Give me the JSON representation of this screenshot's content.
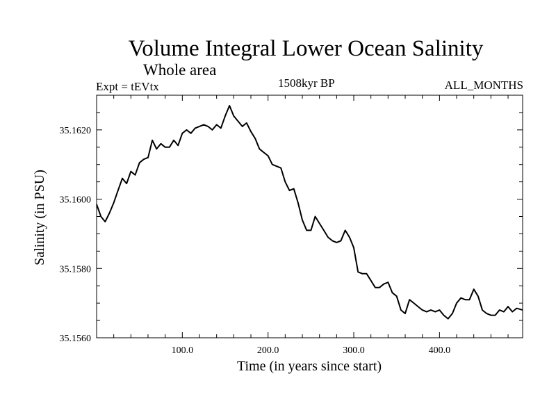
{
  "header": {
    "title": "Volume Integral Lower Ocean Salinity",
    "subtitle": "Whole area",
    "expt": "Expt = tEVtx",
    "period": "1508kyr BP",
    "months": "ALL_MONTHS"
  },
  "chart_data": {
    "type": "line",
    "title": "Volume Integral Lower Ocean Salinity",
    "xlabel": "Time (in years since start)",
    "ylabel": "Salinity (in PSU)",
    "xlim": [
      0,
      497
    ],
    "ylim": [
      35.156,
      35.163
    ],
    "xticks": [
      100,
      200,
      300,
      400
    ],
    "xtick_labels": [
      "100.0",
      "200.0",
      "300.0",
      "400.0"
    ],
    "yticks": [
      35.156,
      35.158,
      35.16,
      35.162
    ],
    "ytick_labels": [
      "35.1560",
      "35.1580",
      "35.1600",
      "35.1620"
    ],
    "series": [
      {
        "name": "Salinity",
        "x": [
          0,
          5,
          10,
          15,
          20,
          25,
          30,
          35,
          40,
          45,
          50,
          55,
          60,
          65,
          70,
          75,
          80,
          85,
          90,
          95,
          100,
          105,
          110,
          115,
          120,
          125,
          130,
          135,
          140,
          145,
          150,
          155,
          160,
          165,
          170,
          175,
          180,
          185,
          190,
          195,
          200,
          205,
          210,
          215,
          220,
          225,
          230,
          235,
          240,
          245,
          250,
          255,
          260,
          265,
          270,
          275,
          280,
          285,
          290,
          295,
          300,
          305,
          310,
          315,
          320,
          325,
          330,
          335,
          340,
          345,
          350,
          355,
          360,
          365,
          370,
          375,
          380,
          385,
          390,
          395,
          400,
          405,
          410,
          415,
          420,
          425,
          430,
          435,
          440,
          445,
          450,
          455,
          460,
          465,
          470,
          475,
          480,
          485,
          490,
          497
        ],
        "y": [
          35.15985,
          35.1595,
          35.15935,
          35.1596,
          35.1599,
          35.16025,
          35.1606,
          35.16045,
          35.1608,
          35.1607,
          35.16105,
          35.16115,
          35.1612,
          35.1617,
          35.16145,
          35.1616,
          35.1615,
          35.1615,
          35.1617,
          35.16155,
          35.1619,
          35.162,
          35.1619,
          35.16205,
          35.1621,
          35.16215,
          35.1621,
          35.162,
          35.16215,
          35.16205,
          35.1624,
          35.1627,
          35.1624,
          35.16225,
          35.1621,
          35.1622,
          35.16195,
          35.16175,
          35.16145,
          35.16135,
          35.16125,
          35.161,
          35.16095,
          35.1609,
          35.1605,
          35.16025,
          35.1603,
          35.1599,
          35.1594,
          35.1591,
          35.1591,
          35.1595,
          35.1593,
          35.1591,
          35.1589,
          35.1588,
          35.15875,
          35.1588,
          35.1591,
          35.1589,
          35.1586,
          35.1579,
          35.15785,
          35.15785,
          35.15765,
          35.15745,
          35.15745,
          35.15755,
          35.1576,
          35.1573,
          35.1572,
          35.1568,
          35.1567,
          35.1571,
          35.157,
          35.1569,
          35.1568,
          35.15675,
          35.1568,
          35.15675,
          35.1568,
          35.15665,
          35.15655,
          35.1567,
          35.157,
          35.15715,
          35.1571,
          35.1571,
          35.1574,
          35.1572,
          35.1568,
          35.1567,
          35.15665,
          35.15665,
          35.1568,
          35.15675,
          35.1569,
          35.15675,
          35.15685,
          35.1568
        ]
      }
    ]
  }
}
